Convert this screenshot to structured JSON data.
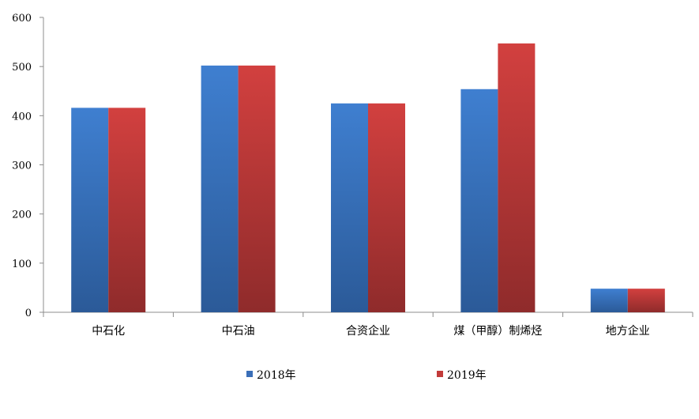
{
  "chart_data": {
    "type": "bar",
    "categories": [
      "中石化",
      "中石油",
      "合资企业",
      "煤（甲醇）制烯烃",
      "地方企业"
    ],
    "series": [
      {
        "name": "2018年",
        "values": [
          416,
          502,
          425,
          454,
          48
        ],
        "color": "#3a6fb8"
      },
      {
        "name": "2019年",
        "values": [
          416,
          502,
          425,
          547,
          48
        ],
        "color": "#c23b3a"
      }
    ],
    "ylim": [
      0,
      600
    ],
    "yticks": [
      "0",
      "100",
      "200",
      "300",
      "400",
      "500",
      "600"
    ],
    "grid": false,
    "legend_position": "bottom"
  }
}
